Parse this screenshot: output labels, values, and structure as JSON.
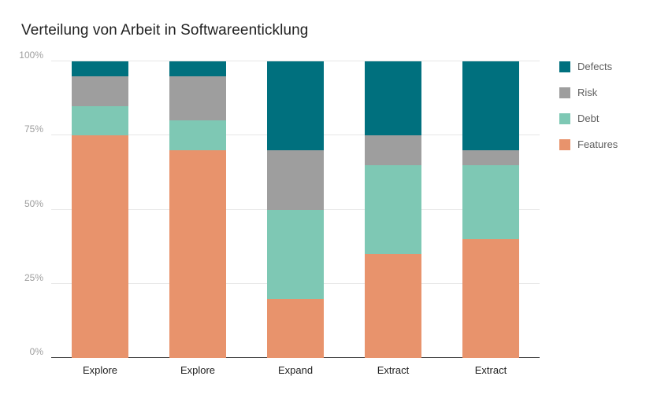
{
  "title": "Verteilung von Arbeit in Softwareenticklung",
  "chart_data": {
    "type": "bar",
    "stacked": true,
    "percent": true,
    "title": "Verteilung von Arbeit in Softwareenticklung",
    "categories": [
      "Explore",
      "Explore",
      "Expand",
      "Extract",
      "Extract"
    ],
    "series": [
      {
        "name": "Features",
        "color": "#E8936C",
        "values": [
          75,
          70,
          20,
          35,
          40
        ]
      },
      {
        "name": "Debt",
        "color": "#7EC8B4",
        "values": [
          10,
          10,
          30,
          30,
          25
        ]
      },
      {
        "name": "Risk",
        "color": "#9E9E9E",
        "values": [
          10,
          15,
          20,
          10,
          5
        ]
      },
      {
        "name": "Defects",
        "color": "#00707E",
        "values": [
          5,
          5,
          30,
          25,
          30
        ]
      }
    ],
    "xlabel": "",
    "ylabel": "",
    "ylim": [
      0,
      100
    ],
    "yticks": [
      0,
      25,
      50,
      75,
      100
    ],
    "ytick_labels": [
      "0%",
      "25%",
      "50%",
      "75%",
      "100%"
    ],
    "grid": true,
    "legend_position": "right",
    "legend_order": [
      "Defects",
      "Risk",
      "Debt",
      "Features"
    ]
  }
}
